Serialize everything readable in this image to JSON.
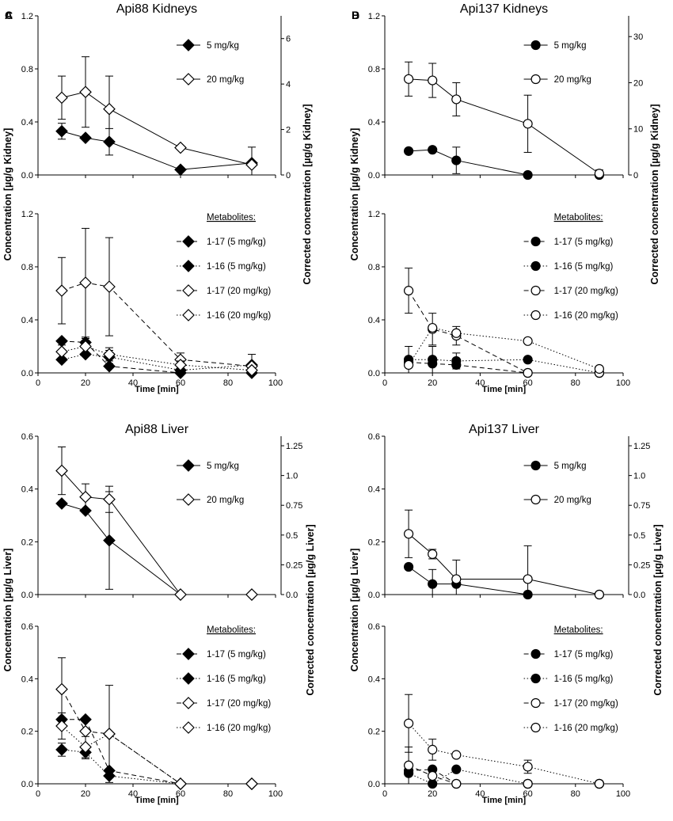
{
  "figure": {
    "x_axis_label": "Time [min]",
    "y_axis_label_left": "Concentration",
    "y_axis_label_right": "Corrected concentration",
    "metabolites_heading": "Metabolites:"
  },
  "chart_data": [
    {
      "panel": "A",
      "type": "line",
      "title": "Api88 Kidneys",
      "tissue_unit": "[µg/g Kidney]",
      "marker": "diamond",
      "xlim": [
        0,
        100
      ],
      "xticks": [
        0,
        20,
        40,
        60,
        80,
        100
      ],
      "top": {
        "ylim": [
          0,
          1.2
        ],
        "yticks": [
          "0.0",
          "0.4",
          "0.8",
          "1.2"
        ],
        "y2lim": [
          0,
          7.0
        ],
        "y2ticks": [
          "0",
          "2",
          "4",
          "6"
        ],
        "series": [
          {
            "name": "5 mg/kg",
            "filled": true,
            "dash": "solid",
            "axis": "left",
            "x": [
              10,
              20,
              30,
              60,
              90
            ],
            "y": [
              0.33,
              0.28,
              0.25,
              0.04,
              0.09
            ],
            "err": [
              0.06,
              0.0,
              0.1,
              0.0,
              0.12
            ]
          },
          {
            "name": "20 mg/kg",
            "filled": false,
            "dash": "solid",
            "axis": "right",
            "x": [
              10,
              20,
              30,
              60,
              90
            ],
            "y": [
              3.4,
              3.65,
              2.9,
              1.2,
              0.45
            ],
            "err": [
              0.95,
              1.55,
              1.45,
              0.0,
              0.0
            ]
          }
        ]
      },
      "bottom": {
        "ylim": [
          0,
          1.2
        ],
        "yticks": [
          "0.0",
          "0.4",
          "0.8",
          "1.2"
        ],
        "series": [
          {
            "name": "1-17 (5 mg/kg)",
            "filled": true,
            "dash": "dashed",
            "x": [
              10,
              20,
              30,
              60,
              90
            ],
            "y": [
              0.24,
              0.23,
              0.05,
              0.0,
              0.0
            ],
            "err": [
              0.0,
              0.03,
              0.0,
              0.0,
              0.0
            ]
          },
          {
            "name": "1-16 (5 mg/kg)",
            "filled": true,
            "dash": "dotted",
            "x": [
              10,
              20,
              30,
              60,
              90
            ],
            "y": [
              0.1,
              0.14,
              0.12,
              0.02,
              0.06
            ],
            "err": [
              0.0,
              0.0,
              0.05,
              0.0,
              0.08
            ]
          },
          {
            "name": "1-17 (20 mg/kg)",
            "filled": false,
            "dash": "dashed",
            "x": [
              10,
              20,
              30,
              60,
              90
            ],
            "y": [
              0.62,
              0.68,
              0.65,
              0.1,
              0.05
            ],
            "err": [
              0.25,
              0.41,
              0.37,
              0.05,
              0.0
            ]
          },
          {
            "name": "1-16 (20 mg/kg)",
            "filled": false,
            "dash": "dotted",
            "x": [
              10,
              20,
              30,
              60,
              90
            ],
            "y": [
              0.16,
              0.2,
              0.14,
              0.06,
              0.02
            ],
            "err": [
              0.05,
              0.06,
              0.05,
              0.03,
              0.0
            ]
          }
        ]
      }
    },
    {
      "panel": "B",
      "type": "line",
      "title": "Api137 Kidneys",
      "tissue_unit": "[µg/g Kidney]",
      "marker": "circle",
      "xlim": [
        0,
        100
      ],
      "xticks": [
        0,
        20,
        40,
        60,
        80,
        100
      ],
      "top": {
        "ylim": [
          0,
          1.2
        ],
        "yticks": [
          "0.0",
          "0.4",
          "0.8",
          "1.2"
        ],
        "y2lim": [
          0,
          34.5
        ],
        "y2ticks": [
          "0",
          "10",
          "20",
          "30"
        ],
        "series": [
          {
            "name": "5 mg/kg",
            "filled": true,
            "dash": "solid",
            "axis": "left",
            "x": [
              10,
              20,
              30,
              60,
              90
            ],
            "y": [
              0.18,
              0.19,
              0.11,
              0.0,
              0.0
            ],
            "err": [
              0.0,
              0.0,
              0.1,
              0.0,
              0.0
            ]
          },
          {
            "name": "20 mg/kg",
            "filled": false,
            "dash": "solid",
            "axis": "right",
            "x": [
              10,
              20,
              30,
              60,
              90
            ],
            "y": [
              20.8,
              20.5,
              16.4,
              11.1,
              0.3
            ],
            "err": [
              3.7,
              3.7,
              3.6,
              6.2,
              0.8
            ]
          }
        ]
      },
      "bottom": {
        "ylim": [
          0,
          1.2
        ],
        "yticks": [
          "0.0",
          "0.4",
          "0.8",
          "1.2"
        ],
        "series": [
          {
            "name": "1-17 (5 mg/kg)",
            "filled": true,
            "dash": "dashed",
            "x": [
              10,
              20,
              30,
              60,
              90
            ],
            "y": [
              0.08,
              0.07,
              0.06,
              0.0,
              0.0
            ],
            "err": [
              0.0,
              0.0,
              0.0,
              0.0,
              0.0
            ]
          },
          {
            "name": "1-16 (5 mg/kg)",
            "filled": true,
            "dash": "dotted",
            "x": [
              10,
              20,
              30,
              60,
              90
            ],
            "y": [
              0.1,
              0.1,
              0.09,
              0.1,
              0.0
            ],
            "err": [
              0.1,
              0.1,
              0.06,
              0.0,
              0.0
            ]
          },
          {
            "name": "1-17 (20 mg/kg)",
            "filled": false,
            "dash": "dashed",
            "x": [
              10,
              20,
              30,
              60,
              90
            ],
            "y": [
              0.62,
              0.33,
              0.28,
              0.0,
              0.0
            ],
            "err": [
              0.17,
              0.12,
              0.07,
              0.0,
              0.0
            ]
          },
          {
            "name": "1-16 (20 mg/kg)",
            "filled": false,
            "dash": "dotted",
            "x": [
              10,
              20,
              30,
              60,
              90
            ],
            "y": [
              0.06,
              0.34,
              0.3,
              0.24,
              0.03
            ],
            "err": [
              0.0,
              0.0,
              0.0,
              0.0,
              0.0
            ]
          }
        ]
      }
    },
    {
      "panel": "C",
      "type": "line",
      "title": "Api88 Liver",
      "tissue_unit": "[µg/g Liver]",
      "marker": "diamond",
      "xlim": [
        0,
        100
      ],
      "xticks": [
        0,
        20,
        40,
        60,
        80,
        100
      ],
      "top": {
        "ylim": [
          0,
          0.6
        ],
        "yticks": [
          "0.0",
          "0.2",
          "0.4",
          "0.6"
        ],
        "y2lim": [
          0,
          1.33
        ],
        "y2ticks": [
          "0.0",
          "0.25",
          "0.5",
          "0.75",
          "1.0",
          "1.25"
        ],
        "series": [
          {
            "name": "5 mg/kg",
            "filled": true,
            "dash": "solid",
            "axis": "left",
            "x": [
              10,
              20,
              30,
              60,
              90
            ],
            "y": [
              0.345,
              0.318,
              0.205,
              0.0,
              0.0
            ],
            "err": [
              0.0,
              0.0,
              0.185,
              0.0,
              0.0
            ]
          },
          {
            "name": "20 mg/kg",
            "filled": false,
            "dash": "solid",
            "axis": "right",
            "x": [
              10,
              20,
              30,
              60,
              90
            ],
            "y": [
              1.04,
              0.82,
              0.8,
              0.0,
              0.0
            ],
            "err": [
              0.2,
              0.11,
              0.11,
              0.0,
              0.0
            ]
          }
        ]
      },
      "bottom": {
        "ylim": [
          0,
          0.6
        ],
        "yticks": [
          "0.0",
          "0.2",
          "0.4",
          "0.6"
        ],
        "series": [
          {
            "name": "1-17 (5 mg/kg)",
            "filled": true,
            "dash": "dashed",
            "x": [
              10,
              20,
              30,
              60,
              90
            ],
            "y": [
              0.245,
              0.245,
              0.05,
              0.0,
              0.0
            ],
            "err": [
              0.0,
              0.0,
              0.0,
              0.0,
              0.0
            ]
          },
          {
            "name": "1-16 (5 mg/kg)",
            "filled": true,
            "dash": "dotted",
            "x": [
              10,
              20,
              30,
              60,
              90
            ],
            "y": [
              0.13,
              0.12,
              0.03,
              0.0,
              0.0
            ],
            "err": [
              0.025,
              0.025,
              0.0,
              0.0,
              0.0
            ]
          },
          {
            "name": "1-17 (20 mg/kg)",
            "filled": false,
            "dash": "dashed",
            "x": [
              10,
              20,
              30,
              60,
              90
            ],
            "y": [
              0.36,
              0.2,
              0.19,
              0.0,
              0.0
            ],
            "err": [
              0.12,
              0.0,
              0.185,
              0.0,
              0.0
            ]
          },
          {
            "name": "1-16 (20 mg/kg)",
            "filled": false,
            "dash": "dotted",
            "x": [
              10,
              20,
              30,
              60,
              90
            ],
            "y": [
              0.22,
              0.14,
              0.19,
              0.0,
              0.0
            ],
            "err": [
              0.05,
              0.04,
              0.0,
              0.0,
              0.0
            ]
          }
        ]
      }
    },
    {
      "panel": "D",
      "type": "line",
      "title": "Api137 Liver",
      "tissue_unit": "[µg/g Liver]",
      "marker": "circle",
      "xlim": [
        0,
        100
      ],
      "xticks": [
        0,
        20,
        40,
        60,
        80,
        100
      ],
      "top": {
        "ylim": [
          0,
          0.6
        ],
        "yticks": [
          "0.0",
          "0.2",
          "0.4",
          "0.6"
        ],
        "y2lim": [
          0,
          1.33
        ],
        "y2ticks": [
          "0.0",
          "0.25",
          "0.5",
          "0.75",
          "1.0",
          "1.25"
        ],
        "series": [
          {
            "name": "5 mg/kg",
            "filled": true,
            "dash": "solid",
            "axis": "left",
            "x": [
              10,
              20,
              30,
              60,
              90
            ],
            "y": [
              0.105,
              0.04,
              0.04,
              0.0,
              0.0
            ],
            "err": [
              0.0,
              0.055,
              0.0,
              0.0,
              0.0
            ]
          },
          {
            "name": "20 mg/kg",
            "filled": false,
            "dash": "solid",
            "axis": "right",
            "x": [
              10,
              20,
              30,
              60,
              90
            ],
            "y": [
              0.51,
              0.34,
              0.13,
              0.13,
              0.0
            ],
            "err": [
              0.2,
              0.04,
              0.16,
              0.28,
              0.0
            ]
          }
        ]
      },
      "bottom": {
        "ylim": [
          0,
          0.6
        ],
        "yticks": [
          "0.0",
          "0.2",
          "0.4",
          "0.6"
        ],
        "series": [
          {
            "name": "1-17 (5 mg/kg)",
            "filled": true,
            "dash": "dashed",
            "x": [
              10,
              20,
              30,
              60,
              90
            ],
            "y": [
              0.05,
              0.055,
              0.0,
              0.0,
              0.0
            ],
            "err": [
              0.0,
              0.0,
              0.0,
              0.0,
              0.0
            ]
          },
          {
            "name": "1-16 (5 mg/kg)",
            "filled": true,
            "dash": "dotted",
            "x": [
              10,
              20,
              30,
              60,
              90
            ],
            "y": [
              0.04,
              0.0,
              0.055,
              0.0,
              0.0
            ],
            "err": [
              0.1,
              0.0,
              0.0,
              0.0,
              0.0
            ]
          },
          {
            "name": "1-17 (20 mg/kg)",
            "filled": false,
            "dash": "dashed",
            "x": [
              10,
              20,
              30,
              60,
              90
            ],
            "y": [
              0.07,
              0.03,
              0.0,
              0.0,
              0.0
            ],
            "err": [
              0.0,
              0.0,
              0.0,
              0.0,
              0.0
            ]
          },
          {
            "name": "1-16 (20 mg/kg)",
            "filled": false,
            "dash": "dotted",
            "x": [
              10,
              20,
              30,
              60,
              90
            ],
            "y": [
              0.23,
              0.13,
              0.11,
              0.065,
              0.0
            ],
            "err": [
              0.11,
              0.04,
              0.0,
              0.025,
              0.0
            ]
          }
        ]
      }
    }
  ]
}
